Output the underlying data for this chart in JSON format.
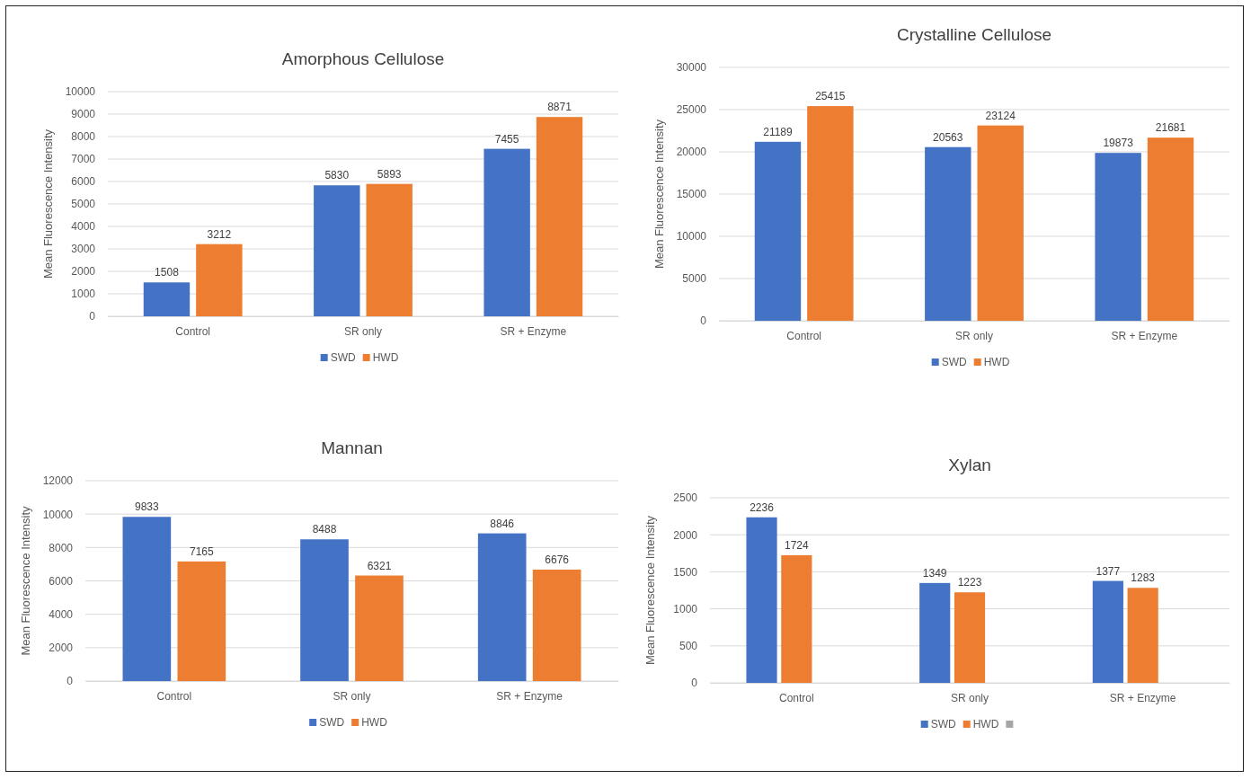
{
  "chart_data": [
    {
      "type": "bar",
      "title": "Amorphous Cellulose",
      "ylabel": "Mean Fluorescence Intensity",
      "categories": [
        "Control",
        "SR only",
        "SR + Enzyme"
      ],
      "series": [
        {
          "name": "SWD",
          "color": "#4472c4",
          "values": [
            1508,
            5830,
            7455
          ]
        },
        {
          "name": "HWD",
          "color": "#ed7d31",
          "values": [
            3212,
            5893,
            8871
          ]
        }
      ],
      "ylim": [
        0,
        10000
      ],
      "yticks": [
        0,
        1000,
        2000,
        3000,
        4000,
        5000,
        6000,
        7000,
        8000,
        9000,
        10000
      ],
      "grid": "y",
      "legend": "bottom",
      "data_labels": true
    },
    {
      "type": "bar",
      "title": "Crystalline Cellulose",
      "ylabel": "Mean Fluorescence Intensity",
      "categories": [
        "Control",
        "SR only",
        "SR + Enzyme"
      ],
      "series": [
        {
          "name": "SWD",
          "color": "#4472c4",
          "values": [
            21189,
            20563,
            19873
          ]
        },
        {
          "name": "HWD",
          "color": "#ed7d31",
          "values": [
            25415,
            23124,
            21681
          ]
        }
      ],
      "ylim": [
        0,
        30000
      ],
      "yticks": [
        0,
        5000,
        10000,
        15000,
        20000,
        25000,
        30000
      ],
      "grid": "y",
      "legend": "bottom",
      "data_labels": true
    },
    {
      "type": "bar",
      "title": "Mannan",
      "ylabel": "Mean Fluorescence Intensity",
      "categories": [
        "Control",
        "SR only",
        "SR + Enzyme"
      ],
      "series": [
        {
          "name": "SWD",
          "color": "#4472c4",
          "values": [
            9833,
            8488,
            8846
          ]
        },
        {
          "name": "HWD",
          "color": "#ed7d31",
          "values": [
            7165,
            6321,
            6676
          ]
        }
      ],
      "ylim": [
        0,
        12000
      ],
      "yticks": [
        0,
        2000,
        4000,
        6000,
        8000,
        10000,
        12000
      ],
      "grid": "y",
      "legend": "bottom",
      "data_labels": true
    },
    {
      "type": "bar",
      "title": "Xylan",
      "ylabel": "Mean Fluorescence Intensity",
      "categories": [
        "Control",
        "SR only",
        "SR + Enzyme"
      ],
      "series": [
        {
          "name": "SWD",
          "color": "#4472c4",
          "values": [
            2236,
            1349,
            1377
          ]
        },
        {
          "name": "HWD",
          "color": "#ed7d31",
          "values": [
            1724,
            1223,
            1283
          ]
        },
        {
          "color": "#a5a5a5",
          "values": [
            null,
            null,
            null
          ]
        }
      ],
      "ylim": [
        0,
        2500
      ],
      "yticks": [
        0,
        500,
        1000,
        1500,
        2000,
        2500
      ],
      "grid": "y",
      "legend": "bottom",
      "data_labels": true
    }
  ]
}
